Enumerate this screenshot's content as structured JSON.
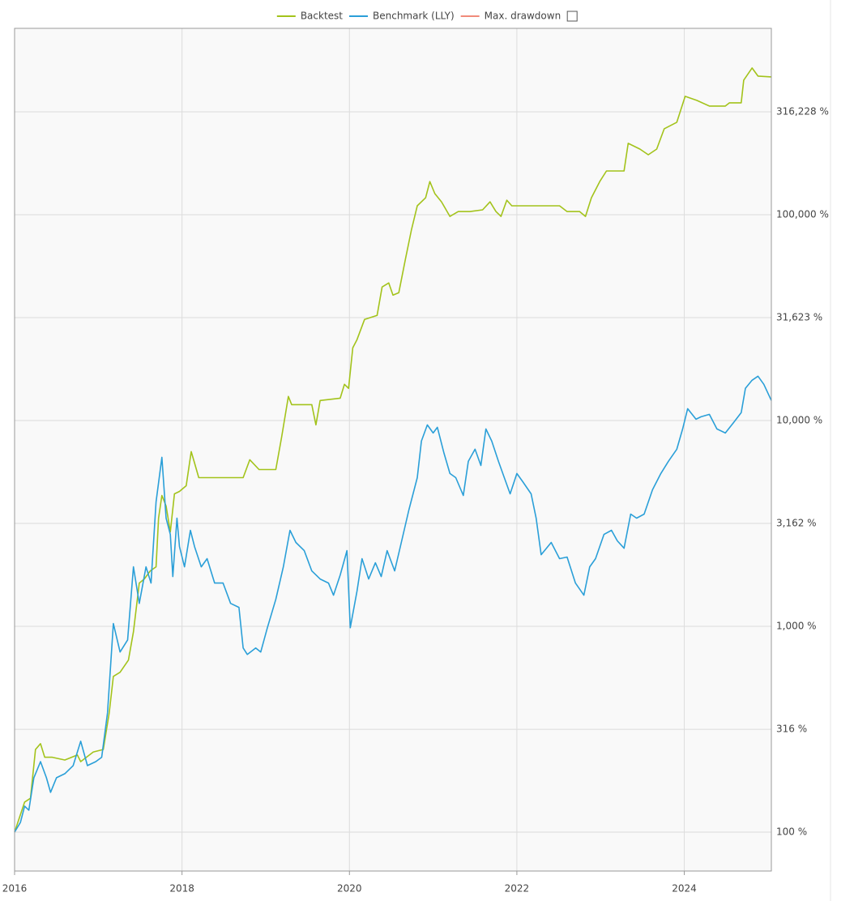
{
  "chart_data": {
    "type": "line",
    "log_y": true,
    "grid": true,
    "legend": "top",
    "xlim": [
      2016,
      2025.04
    ],
    "xticks": [
      2016,
      2018,
      2020,
      2022,
      2024
    ],
    "ylim": [
      64.7,
      805000
    ],
    "yticks": [
      {
        "value": 100,
        "label": "100 %"
      },
      {
        "value": 316,
        "label": "316 %"
      },
      {
        "value": 1000,
        "label": "1,000 %"
      },
      {
        "value": 3162,
        "label": "3,162 %"
      },
      {
        "value": 10000,
        "label": "10,000 %"
      },
      {
        "value": 31623,
        "label": "31,623 %"
      },
      {
        "value": 100000,
        "label": "100,000 %"
      },
      {
        "value": 316228,
        "label": "316,228 %"
      }
    ],
    "series": [
      {
        "name": "Backtest",
        "color": "#a3c31b",
        "x": [
          2016.0,
          2016.12,
          2016.19,
          2016.25,
          2016.31,
          2016.36,
          2016.45,
          2016.6,
          2016.75,
          2016.79,
          2016.94,
          2017.06,
          2017.13,
          2017.18,
          2017.26,
          2017.36,
          2017.42,
          2017.49,
          2017.55,
          2017.62,
          2017.69,
          2017.72,
          2017.76,
          2017.81,
          2017.86,
          2017.91,
          2017.97,
          2018.05,
          2018.11,
          2018.15,
          2018.2,
          2018.73,
          2018.81,
          2018.92,
          2019.12,
          2019.19,
          2019.27,
          2019.31,
          2019.55,
          2019.6,
          2019.65,
          2019.89,
          2019.94,
          2019.99,
          2020.04,
          2020.09,
          2020.18,
          2020.33,
          2020.39,
          2020.47,
          2020.52,
          2020.59,
          2020.67,
          2020.74,
          2020.81,
          2020.91,
          2020.96,
          2021.02,
          2021.1,
          2021.2,
          2021.3,
          2021.44,
          2021.59,
          2021.68,
          2021.75,
          2021.81,
          2021.88,
          2021.94,
          2022.02,
          2022.51,
          2022.6,
          2022.75,
          2022.82,
          2022.89,
          2022.99,
          2023.07,
          2023.28,
          2023.33,
          2023.47,
          2023.57,
          2023.67,
          2023.76,
          2023.91,
          2024.01,
          2024.15,
          2024.3,
          2024.49,
          2024.54,
          2024.68,
          2024.71,
          2024.81,
          2024.88,
          2025.04
        ],
        "values": [
          100,
          140,
          146,
          252,
          269,
          231,
          231,
          224,
          237,
          220,
          245,
          252,
          380,
          571,
          598,
          685,
          941,
          1623,
          1698,
          1859,
          1945,
          3354,
          4325,
          3842,
          2874,
          4404,
          4525,
          4823,
          7060,
          6218,
          5280,
          5280,
          6450,
          5782,
          5782,
          8316,
          13090,
          11950,
          11950,
          9527,
          12510,
          12850,
          15000,
          14330,
          22560,
          24710,
          30990,
          32430,
          44570,
          46650,
          40700,
          41820,
          61230,
          84140,
          110500,
          120900,
          145000,
          126600,
          115600,
          98200,
          103600,
          103600,
          105600,
          115600,
          103600,
          98200,
          117700,
          110500,
          110500,
          110500,
          103600,
          103600,
          98200,
          120900,
          145000,
          163200,
          163200,
          222300,
          208500,
          195700,
          208500,
          261700,
          281400,
          376300,
          359500,
          337500,
          337500,
          349900,
          349900,
          451000,
          516800,
          472000,
          467700
        ]
      },
      {
        "name": "Benchmark (LLY)",
        "color": "#2a9fd8",
        "x": [
          2016.0,
          2016.07,
          2016.12,
          2016.17,
          2016.23,
          2016.31,
          2016.38,
          2016.43,
          2016.5,
          2016.6,
          2016.7,
          2016.79,
          2016.87,
          2016.97,
          2017.04,
          2017.11,
          2017.18,
          2017.26,
          2017.35,
          2017.42,
          2017.49,
          2017.57,
          2017.63,
          2017.69,
          2017.76,
          2017.81,
          2017.86,
          2017.89,
          2017.94,
          2017.97,
          2018.03,
          2018.1,
          2018.15,
          2018.23,
          2018.3,
          2018.39,
          2018.49,
          2018.58,
          2018.68,
          2018.73,
          2018.78,
          2018.88,
          2018.94,
          2019.02,
          2019.12,
          2019.21,
          2019.29,
          2019.36,
          2019.46,
          2019.55,
          2019.65,
          2019.75,
          2019.81,
          2019.89,
          2019.97,
          2020.01,
          2020.09,
          2020.15,
          2020.23,
          2020.31,
          2020.38,
          2020.45,
          2020.54,
          2020.62,
          2020.71,
          2020.81,
          2020.86,
          2020.93,
          2021.0,
          2021.05,
          2021.13,
          2021.2,
          2021.27,
          2021.36,
          2021.42,
          2021.5,
          2021.57,
          2021.63,
          2021.7,
          2021.78,
          2021.85,
          2021.92,
          2022.0,
          2022.07,
          2022.17,
          2022.23,
          2022.29,
          2022.41,
          2022.51,
          2022.6,
          2022.7,
          2022.8,
          2022.87,
          2022.94,
          2023.04,
          2023.13,
          2023.2,
          2023.28,
          2023.36,
          2023.43,
          2023.52,
          2023.62,
          2023.72,
          2023.81,
          2023.91,
          2023.98,
          2024.04,
          2024.14,
          2024.2,
          2024.3,
          2024.39,
          2024.49,
          2024.59,
          2024.68,
          2024.73,
          2024.81,
          2024.88,
          2024.95,
          2025.04
        ],
        "values": [
          100,
          111.5,
          133.7,
          127.8,
          183.7,
          220,
          183.7,
          156,
          183.7,
          192.2,
          210.5,
          276.4,
          210.5,
          220,
          231,
          380,
          1031,
          750,
          859,
          1945,
          1292,
          1945,
          1623,
          4022,
          6625,
          3354,
          2797,
          1745,
          3354,
          2441,
          1945,
          2927,
          2441,
          1945,
          2131,
          1623,
          1623,
          1292,
          1236,
          785,
          730,
          785,
          750,
          985,
          1353,
          1945,
          2927,
          2555,
          2333,
          1859,
          1698,
          1623,
          1416,
          1777,
          2333,
          985,
          1482,
          2131,
          1698,
          2036,
          1745,
          2333,
          1859,
          2555,
          3673,
          5280,
          7946,
          9527,
          8700,
          9271,
          6934,
          5526,
          5280,
          4325,
          6331,
          7255,
          6050,
          9105,
          7946,
          6331,
          5280,
          4404,
          5526,
          5047,
          4404,
          3354,
          2229,
          2555,
          2131,
          2170,
          1623,
          1416,
          1945,
          2131,
          2797,
          2927,
          2602,
          2397,
          3511,
          3354,
          3511,
          4608,
          5526,
          6331,
          7255,
          9105,
          11420,
          10150,
          10430,
          10720,
          9105,
          8700,
          9788,
          10920,
          14330,
          15700,
          16430,
          15000,
          12510
        ]
      },
      {
        "name": "Max. drawdown",
        "color": "#f08a7a",
        "x": [],
        "values": []
      }
    ]
  }
}
